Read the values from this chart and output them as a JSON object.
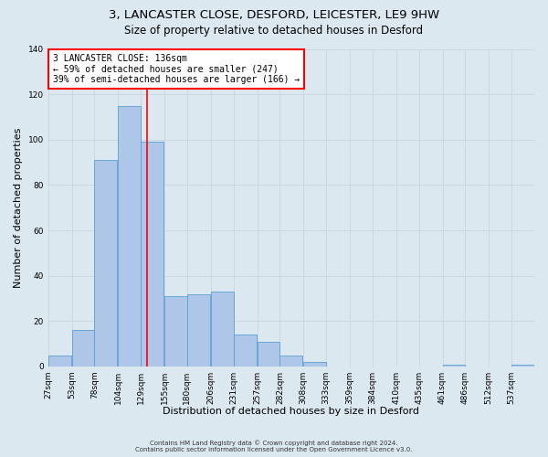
{
  "title": "3, LANCASTER CLOSE, DESFORD, LEICESTER, LE9 9HW",
  "subtitle": "Size of property relative to detached houses in Desford",
  "xlabel": "Distribution of detached houses by size in Desford",
  "ylabel": "Number of detached properties",
  "bin_labels": [
    "27sqm",
    "53sqm",
    "78sqm",
    "104sqm",
    "129sqm",
    "155sqm",
    "180sqm",
    "206sqm",
    "231sqm",
    "257sqm",
    "282sqm",
    "308sqm",
    "333sqm",
    "359sqm",
    "384sqm",
    "410sqm",
    "435sqm",
    "461sqm",
    "486sqm",
    "512sqm",
    "537sqm"
  ],
  "bin_edges": [
    27,
    53,
    78,
    104,
    129,
    155,
    180,
    206,
    231,
    257,
    282,
    308,
    333,
    359,
    384,
    410,
    435,
    461,
    486,
    512,
    537
  ],
  "bar_heights": [
    5,
    16,
    91,
    115,
    99,
    31,
    32,
    33,
    14,
    11,
    5,
    2,
    0,
    0,
    0,
    0,
    0,
    1,
    0,
    0,
    1
  ],
  "bar_color": "#aec6e8",
  "bar_edge_color": "#5a9fd4",
  "vline_x": 136,
  "vline_color": "red",
  "annotation_title": "3 LANCASTER CLOSE: 136sqm",
  "annotation_line1": "← 59% of detached houses are smaller (247)",
  "annotation_line2": "39% of semi-detached houses are larger (166) →",
  "annotation_box_color": "white",
  "annotation_box_edge_color": "red",
  "ylim": [
    0,
    140
  ],
  "bin_width": 25,
  "grid_color": "#c8d4e0",
  "background_color": "#dce8f0",
  "footer_line1": "Contains HM Land Registry data © Crown copyright and database right 2024.",
  "footer_line2": "Contains public sector information licensed under the Open Government Licence v3.0.",
  "title_fontsize": 9.5,
  "subtitle_fontsize": 8.5,
  "tick_fontsize": 6.5,
  "ylabel_fontsize": 8,
  "xlabel_fontsize": 8,
  "annotation_fontsize": 7,
  "footer_fontsize": 5
}
